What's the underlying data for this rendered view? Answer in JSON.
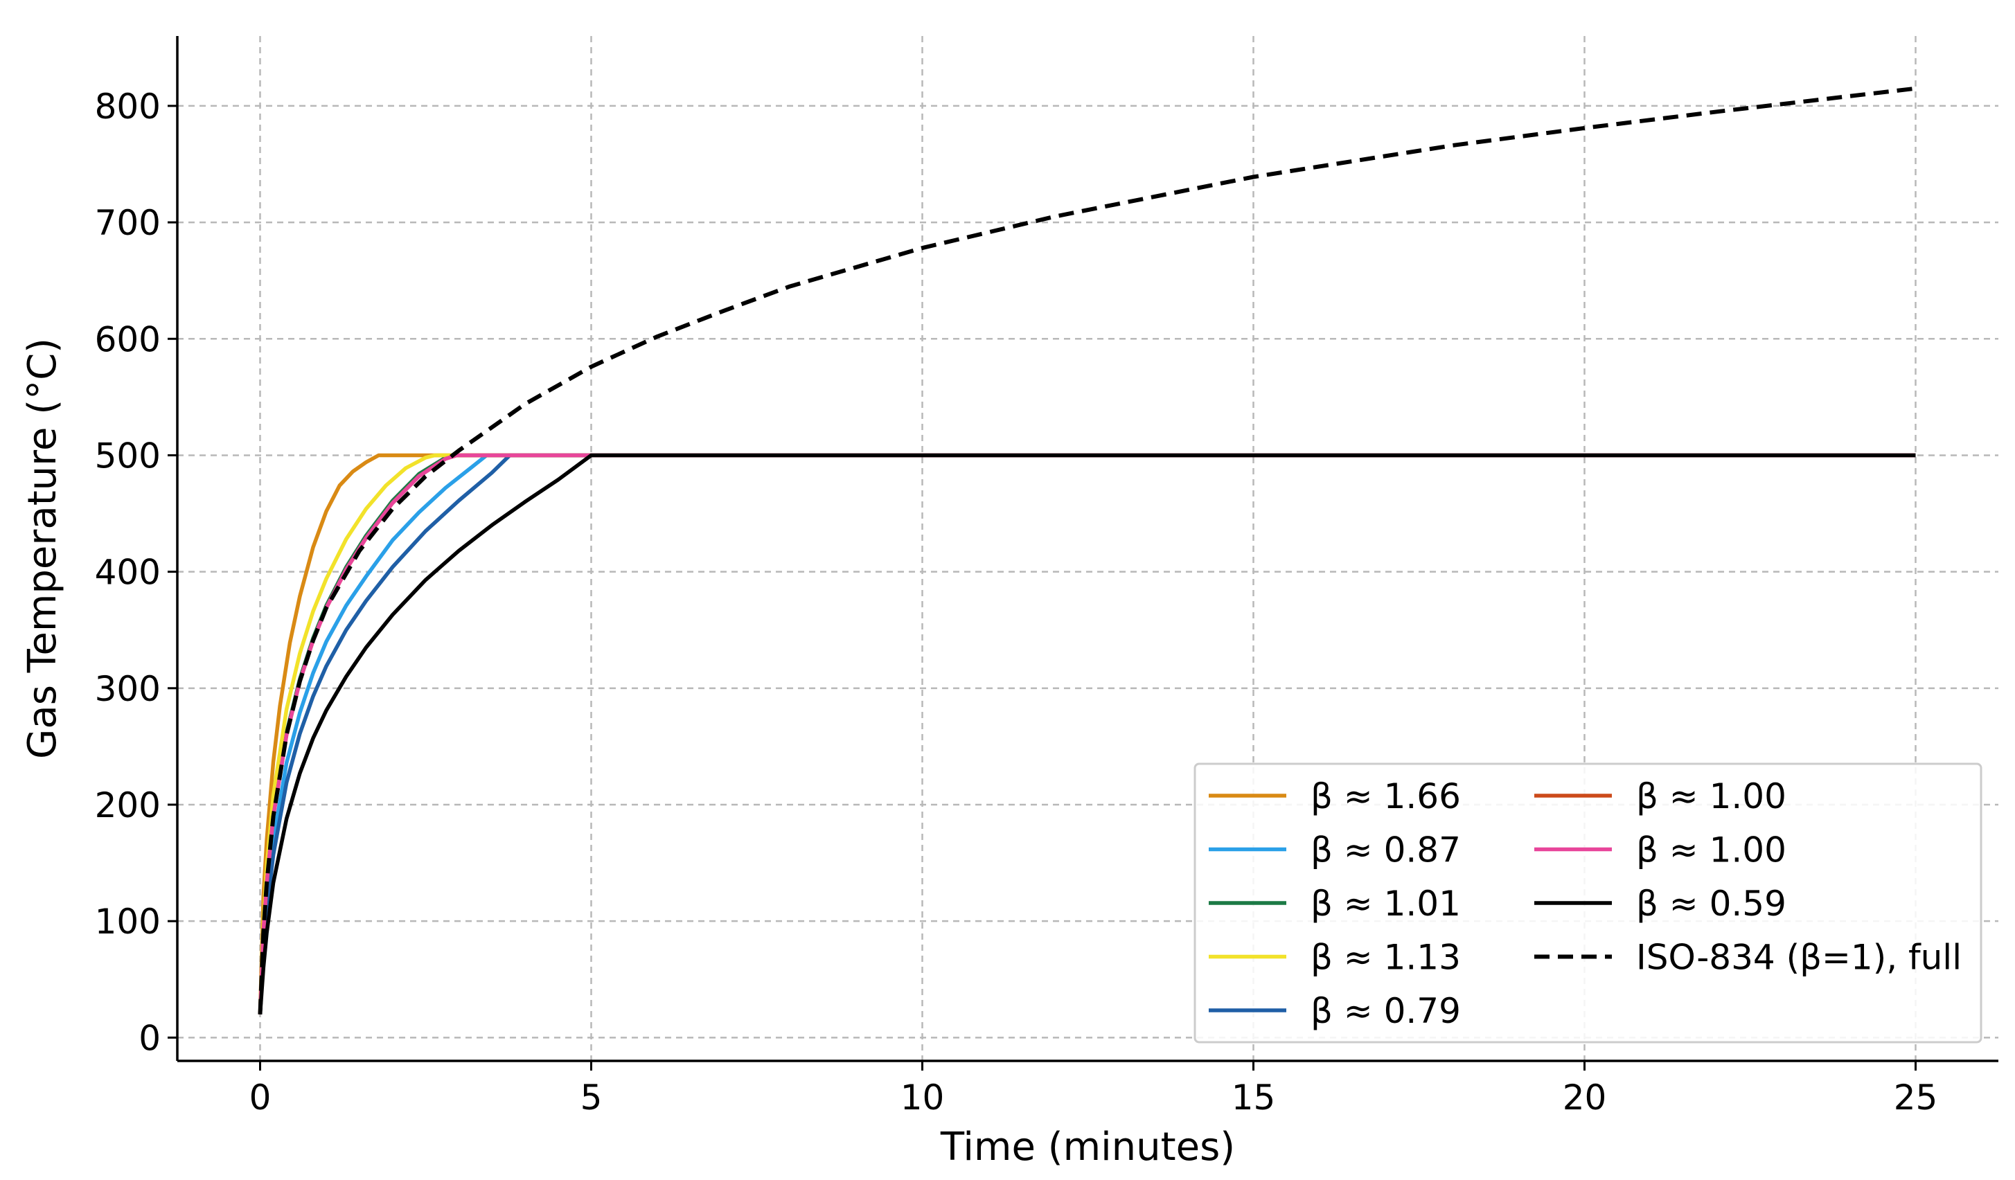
{
  "chart_data": {
    "type": "line",
    "xlabel": "Time (minutes)",
    "ylabel": "Gas Temperature (°C)",
    "xlim": [
      -1.25,
      26.25
    ],
    "ylim": [
      -20,
      860
    ],
    "xticks": [
      "0",
      "5",
      "10",
      "15",
      "20",
      "25"
    ],
    "xtick_values": [
      0,
      5,
      10,
      15,
      20,
      25
    ],
    "yticks": [
      "0",
      "100",
      "200",
      "300",
      "400",
      "500",
      "600",
      "700",
      "800"
    ],
    "ytick_values": [
      0,
      100,
      200,
      300,
      400,
      500,
      600,
      700,
      800
    ],
    "grid": true,
    "legend_position": "lower-right",
    "legend_columns": 2,
    "series": [
      {
        "name": "β ≈ 1.66",
        "color": "#d98a14",
        "style": "solid",
        "x": [
          0,
          0.05,
          0.1,
          0.2,
          0.3,
          0.45,
          0.6,
          0.8,
          1.0,
          1.2,
          1.4,
          1.6,
          1.79,
          25
        ],
        "y": [
          20,
          122,
          170,
          237,
          285,
          339,
          379,
          421,
          452,
          474,
          486,
          494,
          500,
          500
        ]
      },
      {
        "name": "β ≈ 0.87",
        "color": "#2aa0e8",
        "style": "solid",
        "x": [
          0,
          0.05,
          0.1,
          0.2,
          0.4,
          0.6,
          0.8,
          1.0,
          1.3,
          1.6,
          2.0,
          2.4,
          2.8,
          3.2,
          3.42,
          25
        ],
        "y": [
          20,
          80,
          118,
          170,
          236,
          279,
          313,
          340,
          371,
          396,
          427,
          451,
          472,
          490,
          500,
          500
        ]
      },
      {
        "name": "β ≈ 1.01",
        "color": "#1b7a45",
        "style": "solid",
        "x": [
          0,
          0.05,
          0.1,
          0.2,
          0.4,
          0.6,
          0.8,
          1.0,
          1.3,
          1.6,
          2.0,
          2.4,
          2.8,
          2.95,
          25
        ],
        "y": [
          20,
          92,
          134,
          192,
          262,
          308,
          343,
          371,
          404,
          431,
          461,
          484,
          498,
          500,
          500
        ]
      },
      {
        "name": "β ≈ 1.13",
        "color": "#f2e22a",
        "style": "solid",
        "x": [
          0,
          0.05,
          0.1,
          0.2,
          0.4,
          0.6,
          0.8,
          1.0,
          1.3,
          1.6,
          1.9,
          2.2,
          2.5,
          2.64,
          25
        ],
        "y": [
          20,
          102,
          147,
          208,
          282,
          330,
          366,
          394,
          428,
          454,
          474,
          489,
          498,
          500,
          500
        ]
      },
      {
        "name": "β ≈ 0.79",
        "color": "#1f5fa6",
        "style": "solid",
        "x": [
          0,
          0.05,
          0.1,
          0.2,
          0.4,
          0.6,
          0.8,
          1.0,
          1.3,
          1.6,
          2.0,
          2.5,
          3.0,
          3.5,
          3.77,
          25
        ],
        "y": [
          20,
          73,
          109,
          157,
          219,
          261,
          293,
          319,
          350,
          375,
          404,
          435,
          461,
          485,
          500,
          500
        ]
      },
      {
        "name": "β ≈ 1.00",
        "color": "#cc4a1a",
        "style": "solid",
        "x": [
          0,
          0.05,
          0.1,
          0.2,
          0.4,
          0.6,
          0.8,
          1.0,
          1.3,
          1.6,
          2.0,
          2.4,
          2.8,
          2.97,
          25
        ],
        "y": [
          20,
          91,
          133,
          190,
          260,
          306,
          341,
          369,
          402,
          429,
          459,
          482,
          497,
          500,
          500
        ]
      },
      {
        "name": "β ≈ 1.00",
        "color": "#e8459a",
        "style": "solid",
        "x": [
          0,
          0.05,
          0.1,
          0.2,
          0.4,
          0.6,
          0.8,
          1.0,
          1.3,
          1.6,
          2.0,
          2.4,
          2.8,
          2.97,
          25
        ],
        "y": [
          20,
          91,
          133,
          190,
          260,
          306,
          341,
          369,
          402,
          429,
          459,
          482,
          497,
          500,
          500
        ]
      },
      {
        "name": "β ≈ 0.59",
        "color": "#000000",
        "style": "solid",
        "x": [
          0,
          0.05,
          0.1,
          0.2,
          0.4,
          0.6,
          0.8,
          1.0,
          1.3,
          1.6,
          2.0,
          2.5,
          3.0,
          3.5,
          4.0,
          4.5,
          5.0,
          25
        ],
        "y": [
          20,
          60,
          90,
          133,
          188,
          227,
          257,
          281,
          310,
          335,
          363,
          393,
          418,
          440,
          460,
          479,
          500,
          500
        ]
      },
      {
        "name": "ISO-834 (β=1), full",
        "color": "#000000",
        "style": "dashed",
        "x": [
          0,
          0.05,
          0.1,
          0.2,
          0.4,
          0.6,
          0.8,
          1.0,
          1.5,
          2.0,
          2.5,
          3.0,
          4.0,
          5.0,
          6.0,
          7.0,
          8.0,
          10.0,
          12.0,
          15.0,
          18.0,
          20.0,
          22.0,
          25.0
        ],
        "y": [
          20,
          91,
          133,
          190,
          260,
          306,
          341,
          369,
          418,
          454,
          482,
          504,
          544,
          576,
          602,
          624,
          645,
          678,
          705,
          739,
          766,
          781,
          795,
          815
        ]
      }
    ]
  }
}
